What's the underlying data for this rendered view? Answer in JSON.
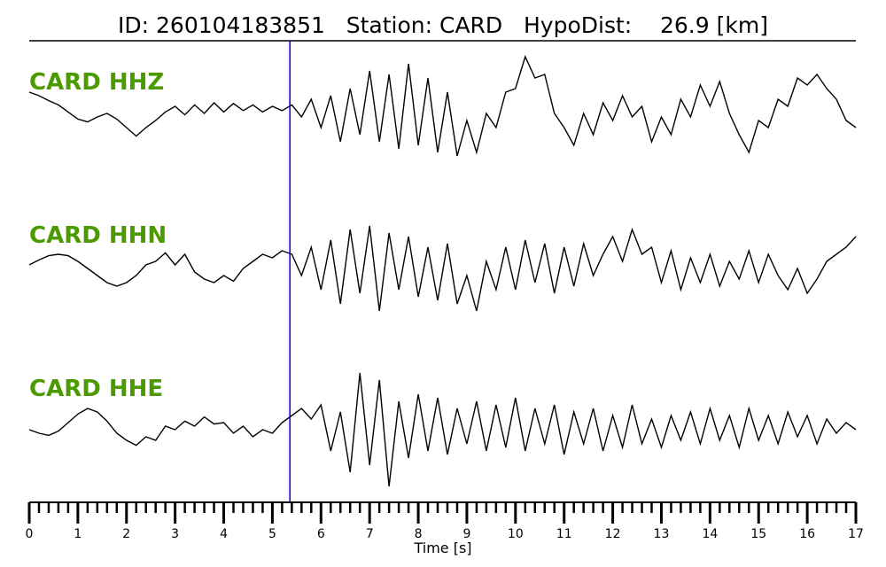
{
  "chart_data": {
    "type": "line",
    "title": "ID: 260104183851   Station: CARD   HypoDist:    26.9 [km]",
    "xlabel": "Time [s]",
    "xlim": [
      0,
      17
    ],
    "xticks": [
      "0",
      "1",
      "2",
      "3",
      "4",
      "5",
      "6",
      "7",
      "8",
      "9",
      "10",
      "11",
      "12",
      "13",
      "14",
      "15",
      "16",
      "17"
    ],
    "minor_tick_step": 0.2,
    "label_color": "#4a9a00",
    "trace_color": "#000000",
    "pick": {
      "time": 5.36,
      "color": "#0000cc"
    },
    "sample_step": 0.2,
    "series": [
      {
        "name": "CARD HHZ",
        "values": [
          0.3,
          0.25,
          0.18,
          0.12,
          0.02,
          -0.08,
          -0.12,
          -0.05,
          0.0,
          -0.08,
          -0.2,
          -0.32,
          -0.2,
          -0.1,
          0.02,
          0.1,
          -0.02,
          0.12,
          0.0,
          0.15,
          0.02,
          0.14,
          0.04,
          0.12,
          0.02,
          0.1,
          0.04,
          0.12,
          -0.05,
          0.2,
          -0.2,
          0.25,
          -0.4,
          0.35,
          -0.3,
          0.6,
          -0.4,
          0.55,
          -0.5,
          0.7,
          -0.45,
          0.5,
          -0.55,
          0.3,
          -0.6,
          -0.1,
          -0.55,
          0.0,
          -0.2,
          0.3,
          0.35,
          0.8,
          0.5,
          0.55,
          0.0,
          -0.2,
          -0.45,
          0.0,
          -0.3,
          0.15,
          -0.1,
          0.25,
          -0.05,
          0.1,
          -0.4,
          -0.05,
          -0.3,
          0.2,
          -0.05,
          0.4,
          0.1,
          0.45,
          0.0,
          -0.3,
          -0.55,
          -0.1,
          -0.2,
          0.2,
          0.1,
          0.5,
          0.4,
          0.55,
          0.35,
          0.2,
          -0.1,
          -0.2
        ]
      },
      {
        "name": "CARD HHN",
        "values": [
          0.05,
          0.12,
          0.18,
          0.2,
          0.18,
          0.1,
          0.0,
          -0.1,
          -0.2,
          -0.25,
          -0.2,
          -0.1,
          0.05,
          0.1,
          0.22,
          0.05,
          0.2,
          -0.05,
          -0.15,
          -0.2,
          -0.1,
          -0.18,
          0.0,
          0.1,
          0.2,
          0.15,
          0.25,
          0.2,
          -0.1,
          0.3,
          -0.3,
          0.4,
          -0.5,
          0.55,
          -0.35,
          0.6,
          -0.6,
          0.5,
          -0.3,
          0.45,
          -0.4,
          0.3,
          -0.45,
          0.35,
          -0.5,
          -0.1,
          -0.6,
          0.1,
          -0.3,
          0.3,
          -0.3,
          0.4,
          -0.2,
          0.35,
          -0.35,
          0.3,
          -0.25,
          0.35,
          -0.1,
          0.2,
          0.45,
          0.1,
          0.55,
          0.2,
          0.3,
          -0.2,
          0.25,
          -0.3,
          0.15,
          -0.2,
          0.2,
          -0.25,
          0.1,
          -0.15,
          0.25,
          -0.2,
          0.2,
          -0.1,
          -0.3,
          0.0,
          -0.35,
          -0.15,
          0.1,
          0.2,
          0.3,
          0.45
        ]
      },
      {
        "name": "CARD HHE",
        "values": [
          0.0,
          -0.05,
          -0.08,
          -0.02,
          0.1,
          0.22,
          0.3,
          0.25,
          0.12,
          -0.05,
          -0.15,
          -0.22,
          -0.1,
          -0.15,
          0.05,
          0.0,
          0.12,
          0.05,
          0.18,
          0.08,
          0.1,
          -0.05,
          0.05,
          -0.1,
          0.0,
          -0.05,
          0.1,
          0.2,
          0.3,
          0.15,
          0.35,
          -0.3,
          0.25,
          -0.6,
          0.8,
          -0.5,
          0.7,
          -0.8,
          0.4,
          -0.4,
          0.5,
          -0.3,
          0.45,
          -0.35,
          0.3,
          -0.2,
          0.4,
          -0.3,
          0.35,
          -0.25,
          0.45,
          -0.3,
          0.3,
          -0.2,
          0.35,
          -0.35,
          0.25,
          -0.2,
          0.3,
          -0.3,
          0.2,
          -0.25,
          0.35,
          -0.2,
          0.15,
          -0.25,
          0.2,
          -0.15,
          0.25,
          -0.2,
          0.3,
          -0.15,
          0.2,
          -0.25,
          0.3,
          -0.15,
          0.2,
          -0.2,
          0.25,
          -0.1,
          0.2,
          -0.2,
          0.15,
          -0.05,
          0.1,
          0.0
        ]
      }
    ]
  }
}
